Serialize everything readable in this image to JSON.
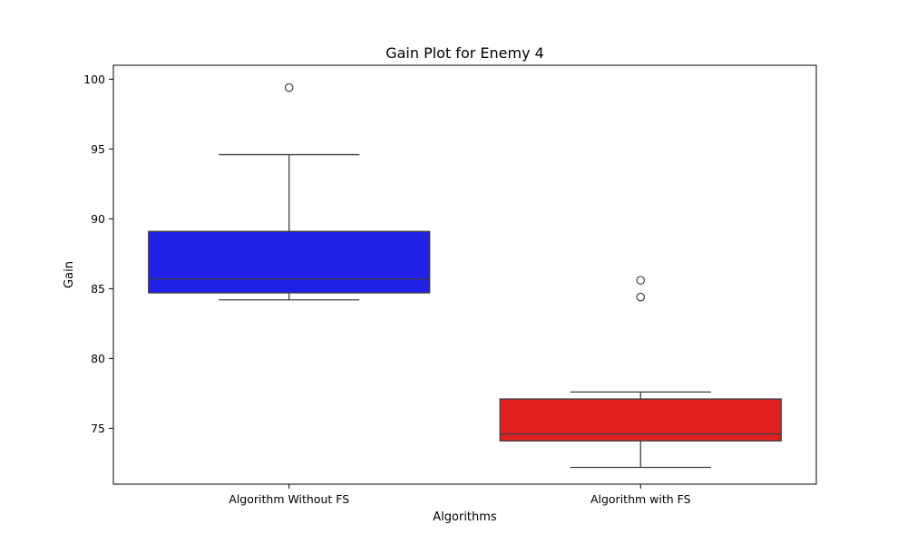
{
  "chart_data": {
    "type": "box",
    "title": "Gain Plot for Enemy 4",
    "xlabel": "Algorithms",
    "ylabel": "Gain",
    "ylim": [
      71,
      101
    ],
    "yticks": [
      75,
      80,
      85,
      90,
      95,
      100
    ],
    "ytick_labels": [
      "75",
      "80",
      "85",
      "90",
      "95",
      "100"
    ],
    "grid": false,
    "categories": [
      "Algorithm Without FS",
      "Algorithm with FS"
    ],
    "boxes": [
      {
        "category": "Algorithm Without FS",
        "color": "#2020e6",
        "whisker_low": 84.2,
        "q1": 84.7,
        "median": 85.7,
        "q3": 89.1,
        "whisker_high": 94.6,
        "outliers": [
          99.4
        ]
      },
      {
        "category": "Algorithm with FS",
        "color": "#e02020",
        "whisker_low": 72.2,
        "q1": 74.1,
        "median": 74.6,
        "q3": 77.1,
        "whisker_high": 77.6,
        "outliers": [
          85.6,
          84.4
        ]
      }
    ]
  }
}
